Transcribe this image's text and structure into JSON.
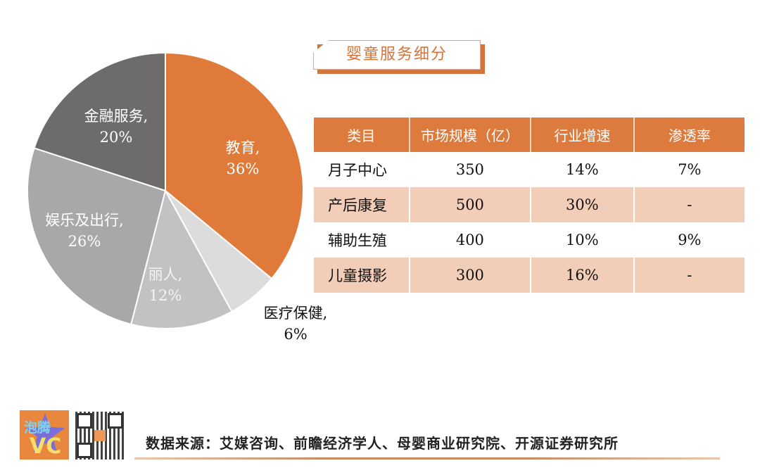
{
  "title": "婴童服务细分",
  "chart_data": [
    {
      "type": "pie",
      "title": "",
      "categories": [
        "教育",
        "医疗保健",
        "丽人",
        "娱乐及出行",
        "金融服务"
      ],
      "values": [
        36,
        6,
        12,
        26,
        20
      ],
      "unit": "%",
      "labels": [
        "教育,\n36%",
        "医疗保健,\n6%",
        "丽人,\n12%",
        "娱乐及出行,\n26%",
        "金融服务,\n20%"
      ],
      "colors": [
        "#e07a3b",
        "#dcdcdc",
        "#c2c2c2",
        "#a9a8a8",
        "#6e6b6b"
      ],
      "start_angle": "12 o'clock, clockwise"
    },
    {
      "type": "table",
      "columns": [
        "类目",
        "市场规模（亿）",
        "行业增速",
        "渗透率"
      ],
      "rows": [
        [
          "月子中心",
          "350",
          "14%",
          "7%"
        ],
        [
          "产后康复",
          "500",
          "30%",
          "-"
        ],
        [
          "辅助生殖",
          "400",
          "10%",
          "9%"
        ],
        [
          "儿童摄影",
          "300",
          "16%",
          "-"
        ]
      ]
    }
  ],
  "pie_labels": {
    "jiaoyu": {
      "name": "教育,",
      "pct": "36%"
    },
    "yiliao": {
      "name": "医疗保健,",
      "pct": "6%"
    },
    "liren": {
      "name": "丽人,",
      "pct": "12%"
    },
    "yule": {
      "name": "娱乐及出行,",
      "pct": "26%"
    },
    "jinrong": {
      "name": "金融服务,",
      "pct": "20%"
    }
  },
  "table": {
    "headers": [
      "类目",
      "市场规模（亿）",
      "行业增速",
      "渗透率"
    ],
    "rows": [
      [
        "月子中心",
        "350",
        "14%",
        "7%"
      ],
      [
        "产后康复",
        "500",
        "30%",
        "-"
      ],
      [
        "辅助生殖",
        "400",
        "10%",
        "9%"
      ],
      [
        "儿童摄影",
        "300",
        "16%",
        "-"
      ]
    ]
  },
  "footer": {
    "source": "数据来源：艾媒咨询、前瞻经济学人、母婴商业研究院、开源证券研究所",
    "logo_text_top": "泡腾",
    "logo_text_bottom": "VC"
  },
  "colors": {
    "accent": "#dd7b3e",
    "table_alt_row": "#f2cdb8"
  }
}
